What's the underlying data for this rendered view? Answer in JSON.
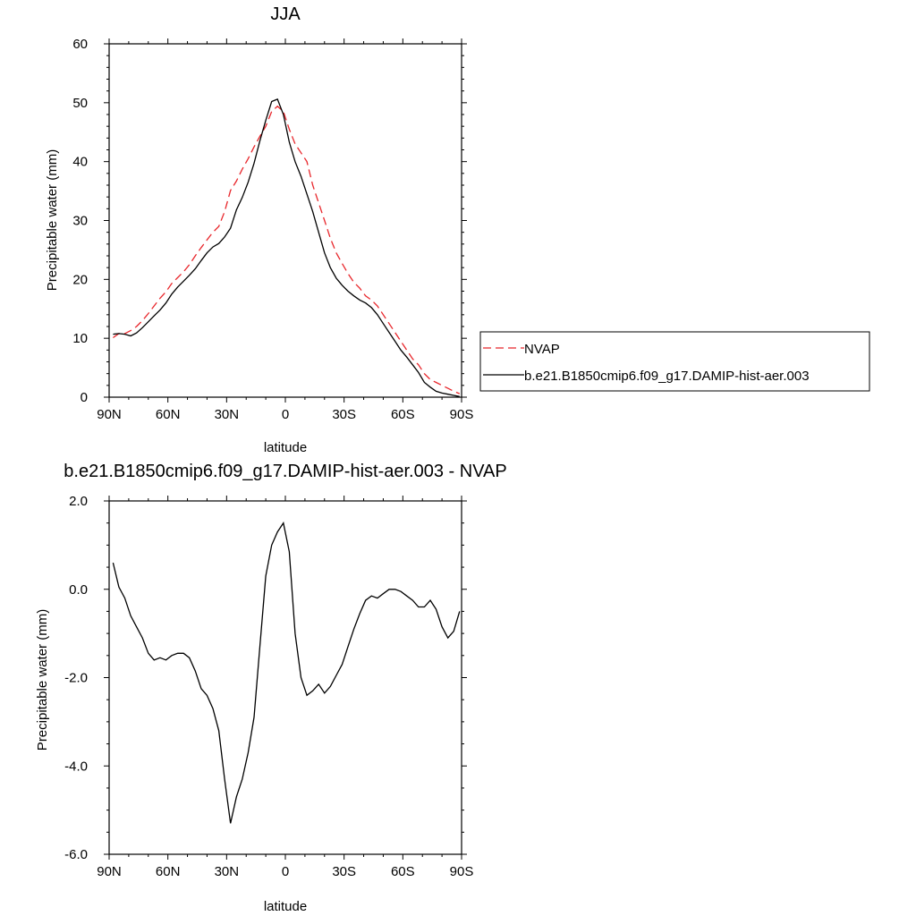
{
  "chart_data": [
    {
      "type": "line",
      "title": "JJA",
      "xlabel": "latitude",
      "ylabel": "Precipitable water (mm)",
      "xlim": [
        90,
        -90
      ],
      "ylim": [
        0,
        60
      ],
      "xticks": [
        {
          "value": 90,
          "label": "90N"
        },
        {
          "value": 60,
          "label": "60N"
        },
        {
          "value": 30,
          "label": "30N"
        },
        {
          "value": 0,
          "label": "0"
        },
        {
          "value": -30,
          "label": "30S"
        },
        {
          "value": -60,
          "label": "60S"
        },
        {
          "value": -90,
          "label": "90S"
        }
      ],
      "yticks": [
        {
          "value": 0,
          "label": "0"
        },
        {
          "value": 10,
          "label": "10"
        },
        {
          "value": 20,
          "label": "20"
        },
        {
          "value": 30,
          "label": "30"
        },
        {
          "value": 40,
          "label": "40"
        },
        {
          "value": 50,
          "label": "50"
        },
        {
          "value": 60,
          "label": "60"
        }
      ],
      "legend_position": "right-bottom outside",
      "series": [
        {
          "name": "NVAP",
          "color": "#e8262b",
          "dash": "dashed",
          "x": [
            88,
            85,
            82,
            79,
            76,
            73,
            70,
            67,
            64,
            61,
            58,
            55,
            52,
            49,
            46,
            43,
            40,
            37,
            34,
            31,
            28,
            25,
            22,
            19,
            16,
            13,
            10,
            7,
            4,
            1,
            -2,
            -5,
            -8,
            -11,
            -14,
            -17,
            -20,
            -23,
            -26,
            -29,
            -32,
            -35,
            -38,
            -41,
            -44,
            -47,
            -50,
            -53,
            -56,
            -59,
            -62,
            -65,
            -68,
            -71,
            -74,
            -77,
            -80,
            -83,
            -86,
            -89
          ],
          "y": [
            10.1,
            10.8,
            10.8,
            11.3,
            12.0,
            13.0,
            14.2,
            15.5,
            16.8,
            17.9,
            19.3,
            20.3,
            21.3,
            22.5,
            24.0,
            25.4,
            26.7,
            28.0,
            29.0,
            31.5,
            35.1,
            36.7,
            38.7,
            40.5,
            42.5,
            44.3,
            46.0,
            48.5,
            49.4,
            48.5,
            45.5,
            43.0,
            41.5,
            40.0,
            36.0,
            33.0,
            30.0,
            27.0,
            24.5,
            22.7,
            21.0,
            19.5,
            18.5,
            17.2,
            16.5,
            15.5,
            14.0,
            12.5,
            11.0,
            9.5,
            8.0,
            6.5,
            5.5,
            4.0,
            3.0,
            2.5,
            2.0,
            1.5,
            1.0,
            0.6
          ]
        },
        {
          "name": "b.e21.B1850cmip6.f09_g17.DAMIP-hist-aer.003",
          "color": "#000000",
          "dash": "solid",
          "x": [
            88,
            85,
            82,
            79,
            76,
            73,
            70,
            67,
            64,
            61,
            58,
            55,
            52,
            49,
            46,
            43,
            40,
            37,
            34,
            31,
            28,
            25,
            22,
            19,
            16,
            13,
            10,
            7,
            4,
            1,
            -2,
            -5,
            -8,
            -11,
            -14,
            -17,
            -20,
            -23,
            -26,
            -29,
            -32,
            -35,
            -38,
            -41,
            -44,
            -47,
            -50,
            -53,
            -56,
            -59,
            -62,
            -65,
            -68,
            -71,
            -74,
            -77,
            -80,
            -83,
            -86,
            -89
          ],
          "y": [
            10.7,
            10.8,
            10.7,
            10.4,
            10.9,
            11.8,
            12.8,
            13.8,
            14.8,
            16.0,
            17.5,
            18.7,
            19.7,
            20.7,
            21.8,
            23.2,
            24.5,
            25.5,
            26.1,
            27.2,
            28.7,
            31.8,
            33.9,
            36.5,
            39.7,
            43.5,
            47.0,
            50.2,
            50.6,
            48.0,
            43.3,
            40.0,
            37.5,
            34.5,
            31.5,
            28.0,
            24.5,
            22.0,
            20.2,
            19.0,
            18.0,
            17.2,
            16.5,
            16.0,
            15.2,
            14.0,
            12.5,
            11.0,
            9.5,
            8.0,
            6.8,
            5.5,
            4.2,
            2.5,
            1.7,
            1.0,
            0.7,
            0.5,
            0.3,
            0.1
          ]
        }
      ]
    },
    {
      "type": "line",
      "title": "b.e21.B1850cmip6.f09_g17.DAMIP-hist-aer.003 - NVAP",
      "xlabel": "latitude",
      "ylabel": "Precipitable water (mm)",
      "xlim": [
        90,
        -90
      ],
      "ylim": [
        -6,
        2
      ],
      "xticks": [
        {
          "value": 90,
          "label": "90N"
        },
        {
          "value": 60,
          "label": "60N"
        },
        {
          "value": 30,
          "label": "30N"
        },
        {
          "value": 0,
          "label": "0"
        },
        {
          "value": -30,
          "label": "30S"
        },
        {
          "value": -60,
          "label": "60S"
        },
        {
          "value": -90,
          "label": "90S"
        }
      ],
      "yticks": [
        {
          "value": -6,
          "label": "-6.0"
        },
        {
          "value": -4,
          "label": "-4.0"
        },
        {
          "value": -2,
          "label": "-2.0"
        },
        {
          "value": 0,
          "label": "0.0"
        },
        {
          "value": 2,
          "label": "2.0"
        }
      ],
      "series": [
        {
          "color": "#000000",
          "dash": "solid",
          "x": [
            88,
            85,
            82,
            79,
            76,
            73,
            70,
            67,
            64,
            61,
            58,
            55,
            52,
            49,
            46,
            43,
            40,
            37,
            34,
            31,
            28,
            25,
            22,
            19,
            16,
            13,
            10,
            7,
            4,
            1,
            -2,
            -5,
            -8,
            -11,
            -14,
            -17,
            -20,
            -23,
            -26,
            -29,
            -32,
            -35,
            -38,
            -41,
            -44,
            -47,
            -50,
            -53,
            -56,
            -59,
            -62,
            -65,
            -68,
            -71,
            -74,
            -77,
            -80,
            -83,
            -86,
            -89
          ],
          "y": [
            0.6,
            0.05,
            -0.2,
            -0.6,
            -0.85,
            -1.1,
            -1.45,
            -1.6,
            -1.55,
            -1.6,
            -1.5,
            -1.45,
            -1.45,
            -1.55,
            -1.85,
            -2.25,
            -2.4,
            -2.7,
            -3.2,
            -4.3,
            -5.3,
            -4.7,
            -4.3,
            -3.7,
            -2.9,
            -1.3,
            0.3,
            1.0,
            1.3,
            1.5,
            0.85,
            -1.0,
            -2.0,
            -2.4,
            -2.3,
            -2.15,
            -2.35,
            -2.2,
            -1.95,
            -1.7,
            -1.3,
            -0.9,
            -0.55,
            -0.25,
            -0.15,
            -0.2,
            -0.1,
            0.0,
            0.0,
            -0.05,
            -0.15,
            -0.25,
            -0.4,
            -0.4,
            -0.25,
            -0.45,
            -0.85,
            -1.1,
            -0.95,
            -0.5
          ]
        }
      ]
    }
  ]
}
